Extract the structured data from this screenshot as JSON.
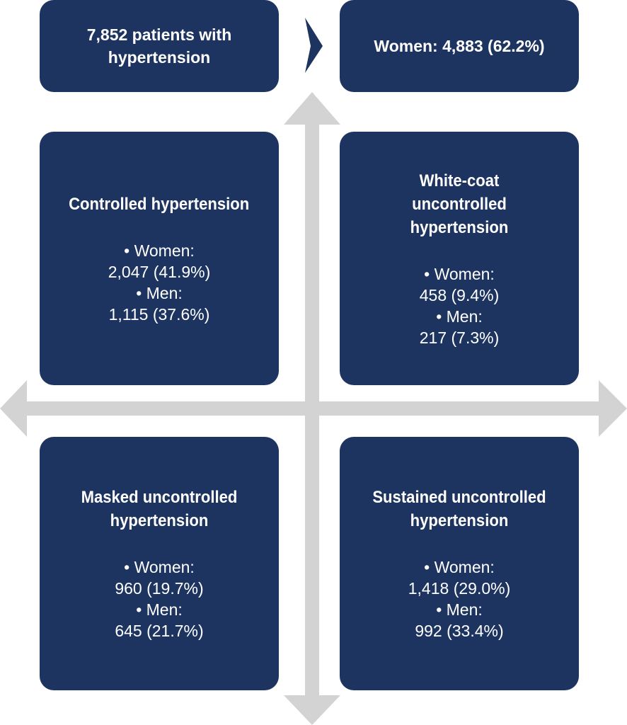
{
  "header": {
    "total_label": "7,852 patients with hypertension",
    "women_label": "Women: 4,883 (62.2%)"
  },
  "quadrants": [
    {
      "title": "Controlled hypertension",
      "women_label": "• Women:",
      "women_value": "2,047 (41.9%)",
      "men_label": "• Men:",
      "men_value": "1,115 (37.6%)"
    },
    {
      "title": "White-coat uncontrolled hypertension",
      "women_label": "• Women:",
      "women_value": "458 (9.4%)",
      "men_label": "• Men:",
      "men_value": "217 (7.3%)"
    },
    {
      "title": "Masked uncontrolled hypertension",
      "women_label": "• Women:",
      "women_value": "960 (19.7%)",
      "men_label": "• Men:",
      "men_value": "645 (21.7%)"
    },
    {
      "title": "Sustained uncontrolled hypertension",
      "women_label": "• Women:",
      "women_value": "1,418 (29.0%)",
      "men_label": "• Men:",
      "men_value": "992 (33.4%)"
    }
  ],
  "colors": {
    "box": "#1d3461",
    "arrow": "#d3d3d3",
    "text": "#ffffff"
  },
  "icons": {
    "header_connector": "chevron-right-icon",
    "axes": "double-headed-arrow"
  }
}
